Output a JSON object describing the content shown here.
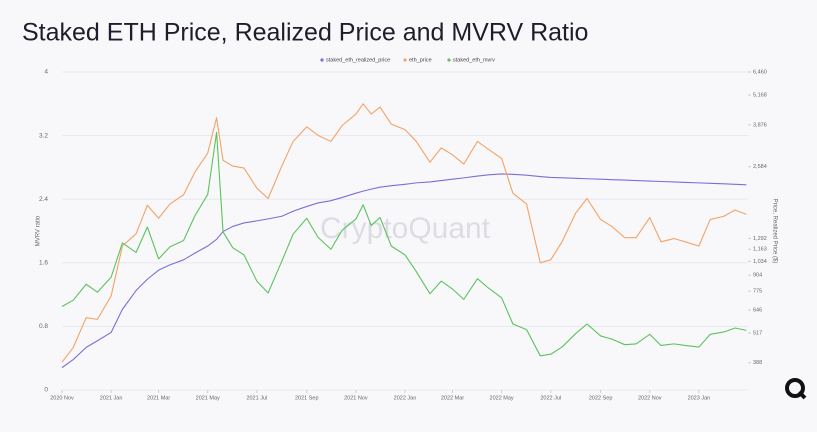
{
  "chart_data": {
    "type": "line",
    "title": "Staked ETH Price, Realized Price and MVRV Ratio",
    "y_label": "MVRV ratio",
    "y2_label": "Price, Realized Price ($)",
    "watermark": "CryptoQuant",
    "x": [
      "2020-11-01",
      "2020-11-15",
      "2020-12-01",
      "2020-12-15",
      "2021-01-01",
      "2021-01-15",
      "2021-02-01",
      "2021-02-15",
      "2021-03-01",
      "2021-03-15",
      "2021-04-01",
      "2021-04-15",
      "2021-05-01",
      "2021-05-12",
      "2021-05-20",
      "2021-06-01",
      "2021-06-15",
      "2021-07-01",
      "2021-07-15",
      "2021-08-01",
      "2021-08-15",
      "2021-09-01",
      "2021-09-15",
      "2021-10-01",
      "2021-10-15",
      "2021-11-01",
      "2021-11-10",
      "2021-11-20",
      "2021-12-01",
      "2021-12-15",
      "2022-01-01",
      "2022-01-15",
      "2022-02-01",
      "2022-02-15",
      "2022-03-01",
      "2022-03-15",
      "2022-04-01",
      "2022-04-15",
      "2022-05-01",
      "2022-05-15",
      "2022-06-01",
      "2022-06-18",
      "2022-07-01",
      "2022-07-15",
      "2022-08-01",
      "2022-08-15",
      "2022-09-01",
      "2022-09-15",
      "2022-10-01",
      "2022-10-15",
      "2022-11-01",
      "2022-11-15",
      "2022-12-01",
      "2022-12-15",
      "2023-01-01",
      "2023-01-15",
      "2023-02-01",
      "2023-02-15",
      "2023-03-01"
    ],
    "series": [
      {
        "name": "staked_eth_realized_price",
        "color": "#7b6fd6",
        "axis": "y2",
        "values": [
          370,
          400,
          450,
          480,
          520,
          650,
          780,
          870,
          950,
          1000,
          1050,
          1120,
          1200,
          1280,
          1380,
          1450,
          1500,
          1530,
          1560,
          1600,
          1680,
          1760,
          1820,
          1860,
          1920,
          2000,
          2040,
          2080,
          2120,
          2150,
          2180,
          2210,
          2230,
          2260,
          2290,
          2320,
          2360,
          2390,
          2410,
          2400,
          2380,
          2350,
          2330,
          2320,
          2310,
          2300,
          2290,
          2280,
          2270,
          2260,
          2250,
          2240,
          2230,
          2220,
          2210,
          2200,
          2190,
          2180,
          2170
        ]
      },
      {
        "name": "eth_price",
        "color": "#f2a366",
        "axis": "y2",
        "values": [
          390,
          450,
          600,
          590,
          740,
          1200,
          1350,
          1780,
          1570,
          1800,
          1970,
          2450,
          2950,
          4150,
          2750,
          2600,
          2550,
          2100,
          1900,
          2600,
          3300,
          3800,
          3500,
          3300,
          3850,
          4300,
          4750,
          4300,
          4600,
          3900,
          3700,
          3300,
          2700,
          3100,
          2900,
          2650,
          3300,
          3050,
          2800,
          2000,
          1800,
          1020,
          1050,
          1250,
          1650,
          1900,
          1550,
          1450,
          1300,
          1300,
          1580,
          1250,
          1290,
          1250,
          1200,
          1550,
          1600,
          1700,
          1630
        ]
      },
      {
        "name": "staked_eth_mvrv",
        "color": "#5cc25c",
        "values": [
          1.05,
          1.13,
          1.33,
          1.23,
          1.42,
          1.85,
          1.73,
          2.05,
          1.65,
          1.8,
          1.88,
          2.19,
          2.46,
          3.24,
          1.99,
          1.79,
          1.7,
          1.37,
          1.22,
          1.62,
          1.96,
          2.16,
          1.92,
          1.77,
          2.01,
          2.15,
          2.33,
          2.07,
          2.17,
          1.81,
          1.7,
          1.49,
          1.21,
          1.37,
          1.27,
          1.14,
          1.4,
          1.28,
          1.16,
          0.83,
          0.76,
          0.43,
          0.45,
          0.54,
          0.71,
          0.83,
          0.68,
          0.64,
          0.57,
          0.58,
          0.7,
          0.56,
          0.58,
          0.56,
          0.54,
          0.7,
          0.73,
          0.78,
          0.75
        ]
      }
    ],
    "xlim": [
      "2020-11-01",
      "2023-03-03"
    ],
    "xticks": [
      {
        "value": "2020-11-01",
        "label": "2020 Nov"
      },
      {
        "value": "2021-01-01",
        "label": "2021 Jan"
      },
      {
        "value": "2021-03-01",
        "label": "2021 Mar"
      },
      {
        "value": "2021-05-01",
        "label": "2021 May"
      },
      {
        "value": "2021-07-01",
        "label": "2021 Jul"
      },
      {
        "value": "2021-09-01",
        "label": "2021 Sep"
      },
      {
        "value": "2021-11-01",
        "label": "2021 Nov"
      },
      {
        "value": "2022-01-01",
        "label": "2022 Jan"
      },
      {
        "value": "2022-03-01",
        "label": "2022 Mar"
      },
      {
        "value": "2022-05-01",
        "label": "2022 May"
      },
      {
        "value": "2022-07-01",
        "label": "2022 Jul"
      },
      {
        "value": "2022-09-01",
        "label": "2022 Sep"
      },
      {
        "value": "2022-11-01",
        "label": "2022 Nov"
      },
      {
        "value": "2023-01-01",
        "label": "2023 Jan"
      }
    ],
    "ylim": [
      0,
      4
    ],
    "yticks": [
      0,
      0.8,
      1.6,
      2.4,
      3.2,
      4
    ],
    "y2lim": [
      298,
      6460
    ],
    "y2log": true,
    "y2ticks": [
      {
        "value": 6460,
        "label": "6,460"
      },
      {
        "value": 5168,
        "label": "5,168"
      },
      {
        "value": 3876,
        "label": "3,876"
      },
      {
        "value": 2584,
        "label": "2,584"
      },
      {
        "value": 1292,
        "label": "1,292"
      },
      {
        "value": 1163,
        "label": "1,163"
      },
      {
        "value": 1034,
        "label": "1,034"
      },
      904,
      775,
      646,
      517,
      388
    ],
    "grid": true
  }
}
